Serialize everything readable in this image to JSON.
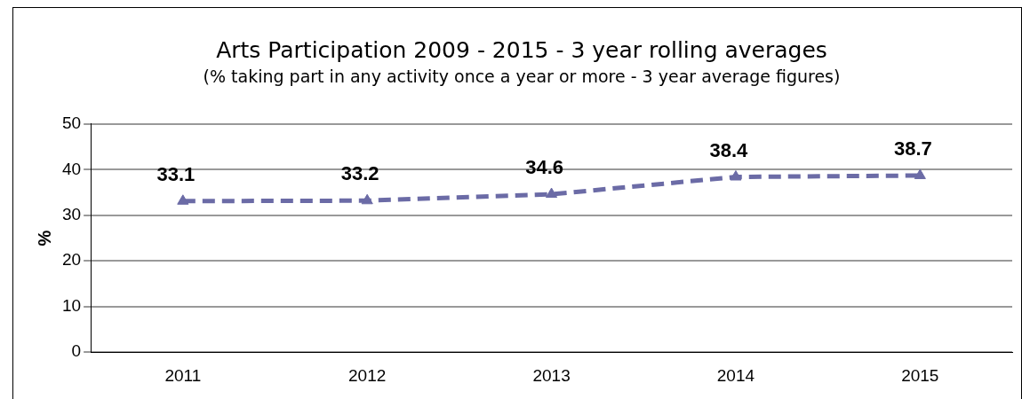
{
  "chart_data": {
    "type": "line",
    "title": "Arts Participation 2009 - 2015 - 3 year rolling averages",
    "subtitle": "(% taking part in any activity once a year or more - 3 year average figures)",
    "ylabel": "%",
    "categories": [
      "2011",
      "2012",
      "2013",
      "2014",
      "2015"
    ],
    "series": [
      {
        "color": "#6b6ba6",
        "values": [
          33.1,
          33.2,
          34.6,
          38.4,
          38.7
        ]
      }
    ],
    "ylim": [
      0,
      50
    ],
    "yticks": [
      0,
      10,
      20,
      30,
      40,
      50
    ],
    "grid": "y",
    "legend": false,
    "marker": "triangle",
    "line_style": "dashed",
    "data_labels": true
  }
}
